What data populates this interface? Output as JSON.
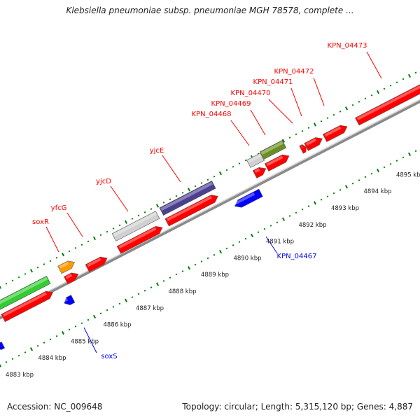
{
  "title": "Klebsiella pneumoniae subsp. pneumoniae MGH 78578, complete ...",
  "accession": "Accession: NC_009648",
  "topology": "Topology: circular; Length: 5,315,120 bp; Genes: 4,887",
  "colors": {
    "red": "#ff0000",
    "blue": "#0000ff",
    "green_gene": "#33cc33",
    "orange_gene": "#ff9900",
    "purple_gene": "#4b3f8f",
    "olive_gene": "#6b8e23",
    "grey_gene": "#d0d0d0",
    "tick_green": "#008000"
  },
  "ruler_ticks": [
    "4883 kbp",
    "4884 kbp",
    "4885 kbp",
    "4886 kbp",
    "4887 kbp",
    "4888 kbp",
    "4889 kbp",
    "4890 kbp",
    "4891 kbp",
    "4892 kbp",
    "4893 kbp",
    "4894 kbp",
    "4895 kbp"
  ],
  "gene_labels_forward": [
    "soxR",
    "yfcG",
    "yjcD",
    "yjcE",
    "KPN_04468",
    "KPN_04469",
    "KPN_04470",
    "KPN_04471",
    "KPN_04472",
    "KPN_04473"
  ],
  "gene_labels_reverse": [
    "KPN_04467",
    "soxS"
  ]
}
